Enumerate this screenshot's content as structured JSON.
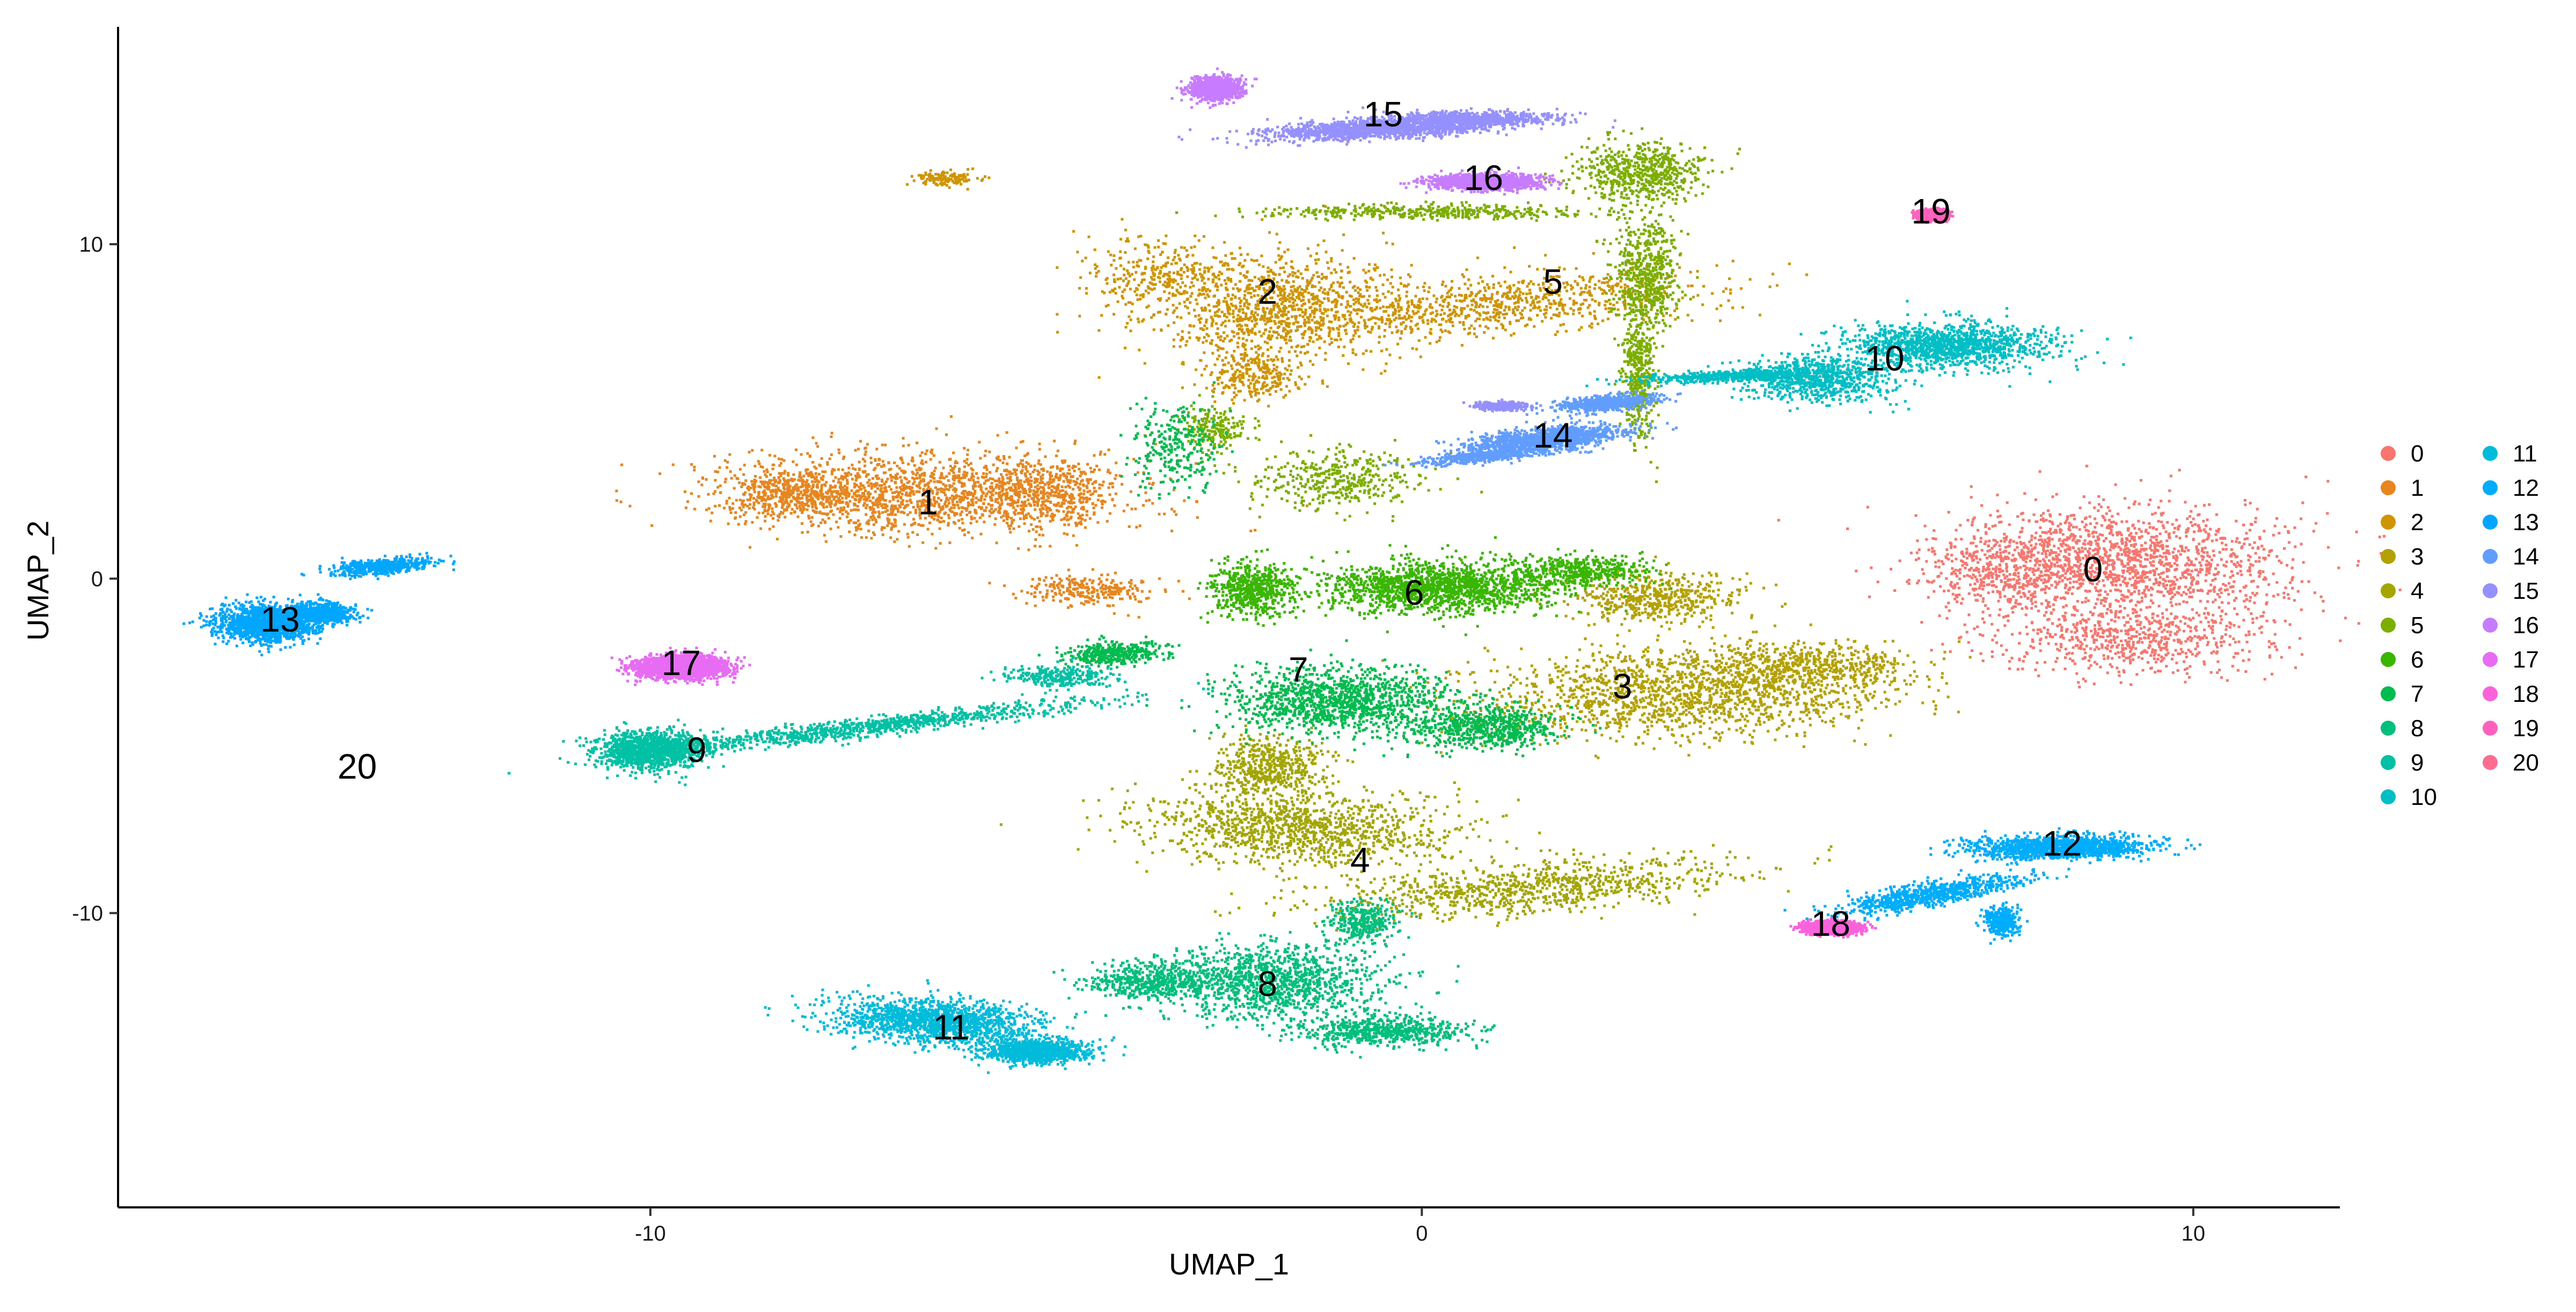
{
  "chart_data": {
    "type": "scatter",
    "title": "",
    "xlabel": "UMAP_1",
    "ylabel": "UMAP_2",
    "xlim": [
      -16.9,
      11.9
    ],
    "ylim": [
      -18.8,
      16.5
    ],
    "xticks": [
      -10,
      0,
      10
    ],
    "yticks": [
      -10,
      0,
      10
    ],
    "grid": false,
    "legend_position": "right",
    "legend_columns": 2,
    "point_size": "small",
    "clusters": [
      {
        "name": "0",
        "color": "#F8766D",
        "label_pos": [
          8.7,
          0.2
        ],
        "blobs": [
          [
            9.0,
            0.5,
            2.0,
            1.6,
            0,
            0.55
          ],
          [
            9.2,
            -1.8,
            1.6,
            0.9,
            0,
            0.2
          ],
          [
            7.5,
            0.3,
            0.9,
            1.0,
            0,
            0.1
          ]
        ]
      },
      {
        "name": "1",
        "color": "#E7851E",
        "label_pos": [
          -6.4,
          2.2
        ],
        "blobs": [
          [
            -6.5,
            2.6,
            2.3,
            1.1,
            0,
            0.6
          ],
          [
            -8.2,
            2.6,
            0.8,
            0.7,
            0,
            0.15
          ],
          [
            -4.9,
            2.6,
            0.8,
            1.0,
            0,
            0.15
          ],
          [
            -4.3,
            -0.3,
            0.8,
            0.4,
            0,
            0.1
          ]
        ]
      },
      {
        "name": "2",
        "color": "#D09400",
        "label_pos": [
          -2.0,
          8.5
        ],
        "blobs": [
          [
            -2.0,
            8.2,
            1.5,
            1.5,
            0,
            0.4
          ],
          [
            0.8,
            8.2,
            2.5,
            0.8,
            0.18,
            0.35
          ],
          [
            -3.5,
            9.2,
            0.8,
            0.9,
            0,
            0.1
          ],
          [
            -6.2,
            12.0,
            0.4,
            0.2,
            0,
            0.05
          ],
          [
            -2.2,
            6.1,
            0.6,
            0.6,
            0,
            0.1
          ]
        ]
      },
      {
        "name": "3",
        "color": "#B2A100",
        "label_pos": [
          2.6,
          -3.3
        ],
        "blobs": [
          [
            3.3,
            -3.4,
            2.4,
            1.2,
            0.08,
            0.6
          ],
          [
            5.0,
            -2.6,
            1.2,
            0.6,
            0,
            0.2
          ],
          [
            3.0,
            -0.5,
            1.0,
            0.7,
            0,
            0.2
          ]
        ]
      },
      {
        "name": "4",
        "color": "#A3A500",
        "label_pos": [
          -0.8,
          -8.5
        ],
        "blobs": [
          [
            -1.6,
            -7.4,
            1.8,
            1.0,
            -0.1,
            0.45
          ],
          [
            1.4,
            -9.2,
            2.4,
            0.7,
            0.2,
            0.35
          ],
          [
            -2.0,
            -5.6,
            0.7,
            0.8,
            0,
            0.2
          ]
        ]
      },
      {
        "name": "5",
        "color": "#7CAE00",
        "label_pos": [
          1.7,
          8.8
        ],
        "blobs": [
          [
            2.8,
            12.2,
            0.8,
            0.8,
            0,
            0.3
          ],
          [
            2.9,
            9.2,
            0.4,
            1.6,
            0,
            0.3
          ],
          [
            2.8,
            6.0,
            0.2,
            1.7,
            0,
            0.2
          ],
          [
            0.1,
            11.0,
            1.8,
            0.2,
            0,
            0.2
          ],
          [
            -1.1,
            3.0,
            1.0,
            0.8,
            0,
            0.2
          ],
          [
            -2.7,
            4.5,
            0.4,
            0.6,
            0,
            0.1
          ]
        ]
      },
      {
        "name": "6",
        "color": "#39B600",
        "label_pos": [
          -0.1,
          -0.5
        ],
        "blobs": [
          [
            0.2,
            -0.2,
            1.4,
            0.7,
            0,
            0.55
          ],
          [
            -2.2,
            -0.3,
            0.5,
            0.7,
            0,
            0.2
          ],
          [
            2.0,
            0.3,
            0.8,
            0.4,
            0,
            0.15
          ]
        ]
      },
      {
        "name": "7",
        "color": "#00BB4E",
        "label_pos": [
          -1.6,
          -2.8
        ],
        "blobs": [
          [
            -1.1,
            -3.6,
            1.3,
            0.9,
            0,
            0.45
          ],
          [
            0.8,
            -4.4,
            0.9,
            0.6,
            0,
            0.25
          ],
          [
            -4.0,
            -2.2,
            0.6,
            0.3,
            0.2,
            0.15
          ],
          [
            -3.2,
            4.0,
            0.5,
            1.2,
            0,
            0.1
          ]
        ]
      },
      {
        "name": "8",
        "color": "#00BF7D",
        "label_pos": [
          -2.0,
          -12.2
        ],
        "blobs": [
          [
            -2.0,
            -12.0,
            1.3,
            1.0,
            0,
            0.4
          ],
          [
            -0.5,
            -13.5,
            1.0,
            0.4,
            0,
            0.2
          ],
          [
            -3.6,
            -12.0,
            0.7,
            0.5,
            0,
            0.15
          ],
          [
            -0.8,
            -10.2,
            0.4,
            0.6,
            0,
            0.1
          ]
        ]
      },
      {
        "name": "9",
        "color": "#00C1A3",
        "label_pos": [
          -9.4,
          -5.2
        ],
        "blobs": [
          [
            -10.0,
            -5.1,
            0.6,
            0.5,
            0,
            0.45
          ],
          [
            -7.2,
            -4.4,
            2.8,
            0.25,
            0.25,
            0.35
          ],
          [
            -4.7,
            -2.9,
            0.6,
            0.3,
            0,
            0.1
          ]
        ]
      },
      {
        "name": "10",
        "color": "#00BFC4",
        "label_pos": [
          6.0,
          6.5
        ],
        "blobs": [
          [
            6.8,
            7.0,
            1.2,
            0.6,
            0,
            0.5
          ],
          [
            5.1,
            6.0,
            0.9,
            0.6,
            0,
            0.3
          ],
          [
            4.0,
            6.1,
            1.2,
            0.15,
            0.1,
            0.2
          ]
        ]
      },
      {
        "name": "11",
        "color": "#00BBDA",
        "label_pos": [
          -6.1,
          -13.5
        ],
        "blobs": [
          [
            -6.3,
            -13.2,
            1.2,
            0.6,
            -0.2,
            0.6
          ],
          [
            -5.0,
            -14.1,
            0.6,
            0.3,
            0,
            0.4
          ]
        ]
      },
      {
        "name": "12",
        "color": "#00ACFC",
        "label_pos": [
          8.3,
          -8.0
        ],
        "blobs": [
          [
            8.3,
            -8.0,
            1.0,
            0.3,
            0.05,
            0.55
          ],
          [
            6.6,
            -9.4,
            1.2,
            0.3,
            0.4,
            0.3
          ],
          [
            7.5,
            -10.2,
            0.2,
            0.4,
            0,
            0.15
          ]
        ]
      },
      {
        "name": "13",
        "color": "#00A6FF",
        "label_pos": [
          -14.8,
          -1.3
        ],
        "blobs": [
          [
            -15.0,
            -1.3,
            0.6,
            0.5,
            0,
            0.55
          ],
          [
            -14.3,
            -1.0,
            0.4,
            0.3,
            0,
            0.25
          ],
          [
            -13.5,
            0.4,
            0.6,
            0.2,
            0.2,
            0.2
          ]
        ]
      },
      {
        "name": "14",
        "color": "#619CFF",
        "label_pos": [
          1.7,
          4.2
        ],
        "blobs": [
          [
            1.6,
            4.2,
            0.9,
            0.3,
            0.25,
            0.55
          ],
          [
            2.4,
            5.3,
            0.6,
            0.2,
            0.2,
            0.25
          ],
          [
            0.8,
            3.7,
            0.7,
            0.15,
            0.2,
            0.2
          ]
        ]
      },
      {
        "name": "15",
        "color": "#9590FF",
        "label_pos": [
          -0.5,
          13.8
        ],
        "blobs": [
          [
            -0.5,
            13.5,
            1.4,
            0.25,
            0.1,
            0.6
          ],
          [
            0.6,
            13.8,
            1.0,
            0.2,
            0,
            0.25
          ],
          [
            1.0,
            5.2,
            0.3,
            0.1,
            0,
            0.15
          ]
        ]
      },
      {
        "name": "16",
        "color": "#C77CFF",
        "label_pos": [
          0.8,
          11.9
        ],
        "blobs": [
          [
            0.8,
            11.9,
            0.6,
            0.2,
            0,
            0.6
          ],
          [
            -2.7,
            14.7,
            0.3,
            0.3,
            0,
            0.4
          ]
        ]
      },
      {
        "name": "17",
        "color": "#E76BF3",
        "label_pos": [
          -9.6,
          -2.6
        ],
        "blobs": [
          [
            -9.6,
            -2.6,
            0.5,
            0.3,
            0,
            1.0
          ]
        ]
      },
      {
        "name": "18",
        "color": "#FA62DB",
        "label_pos": [
          5.3,
          -10.4
        ],
        "blobs": [
          [
            5.3,
            -10.4,
            0.3,
            0.15,
            0,
            1.0
          ]
        ]
      },
      {
        "name": "19",
        "color": "#FF62BC",
        "label_pos": [
          6.6,
          10.9
        ],
        "blobs": [
          [
            6.6,
            10.9,
            0.15,
            0.12,
            0,
            1.0
          ]
        ]
      },
      {
        "name": "20",
        "color": "#FF6C91",
        "label_pos": [
          -13.8,
          -5.7
        ],
        "blobs": []
      }
    ]
  }
}
